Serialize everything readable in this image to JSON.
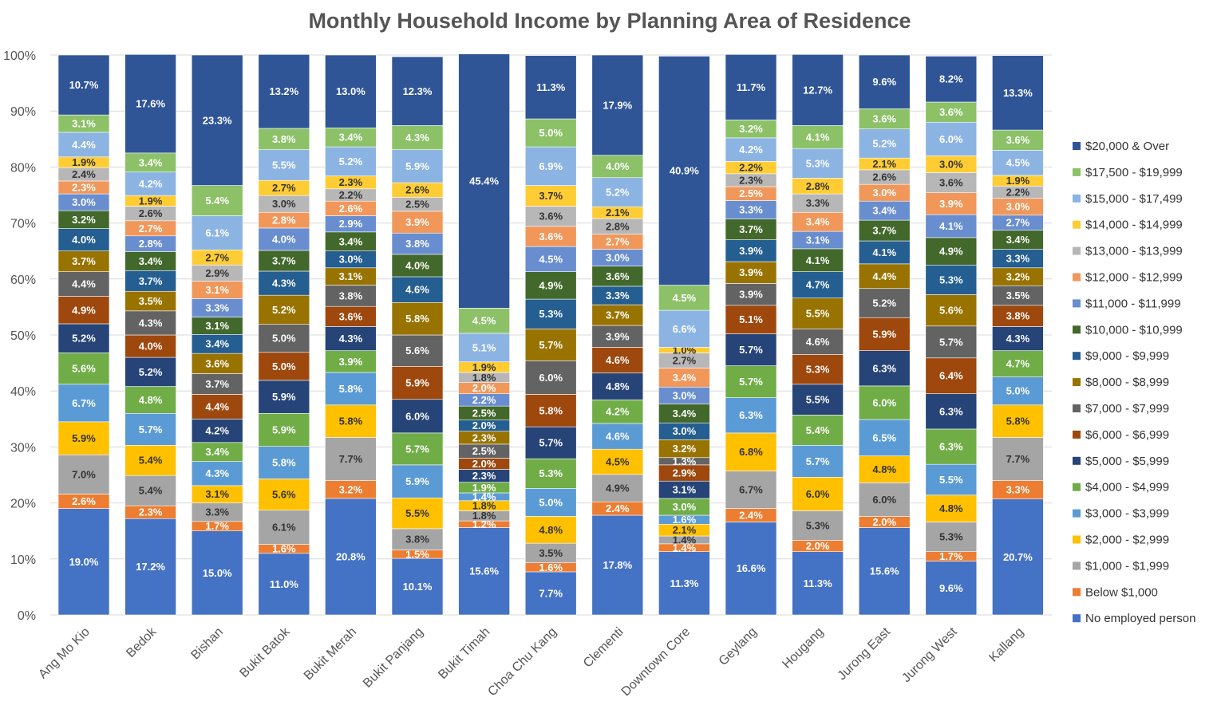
{
  "chart_data": {
    "type": "bar",
    "stacked": true,
    "percent": true,
    "title": "Monthly Household Income by Planning Area of Residence",
    "xlabel": "",
    "ylabel": "",
    "ylim": [
      0,
      100
    ],
    "yticks": [
      "0%",
      "10%",
      "20%",
      "30%",
      "40%",
      "50%",
      "60%",
      "70%",
      "80%",
      "90%",
      "100%"
    ],
    "grid": true,
    "legend_position": "right",
    "categories": [
      "Ang Mo Kio",
      "Bedok",
      "Bishan",
      "Bukit Batok",
      "Bukit Merah",
      "Bukit Panjang",
      "Bukit Timah",
      "Choa Chu Kang",
      "Clementi",
      "Downtown Core",
      "Geylang",
      "Hougang",
      "Jurong East",
      "Jurong West",
      "Kallang"
    ],
    "series": [
      {
        "name": "No employed person",
        "color": "#4472C4",
        "values": [
          19.0,
          17.2,
          15.0,
          11.0,
          20.8,
          10.1,
          15.6,
          7.7,
          17.8,
          11.3,
          16.6,
          11.3,
          15.6,
          9.6,
          20.7
        ]
      },
      {
        "name": "Below $1,000",
        "color": "#ED7D31",
        "values": [
          2.6,
          2.3,
          1.7,
          1.6,
          3.2,
          1.5,
          1.2,
          1.6,
          2.4,
          1.4,
          2.4,
          2.0,
          2.0,
          1.7,
          3.3
        ]
      },
      {
        "name": "$1,000 - $1,999",
        "color": "#A5A5A5",
        "values": [
          7.0,
          5.4,
          3.3,
          6.1,
          7.7,
          3.8,
          1.8,
          3.5,
          4.9,
          1.4,
          6.7,
          5.3,
          6.0,
          5.3,
          7.7
        ]
      },
      {
        "name": "$2,000 - $2,999",
        "color": "#FFC000",
        "values": [
          5.9,
          5.4,
          3.1,
          5.6,
          5.8,
          5.5,
          1.8,
          4.8,
          4.5,
          2.1,
          6.8,
          6.0,
          4.8,
          4.8,
          5.8
        ]
      },
      {
        "name": "$3,000 - $3,999",
        "color": "#5B9BD5",
        "values": [
          6.7,
          5.7,
          4.3,
          5.8,
          5.8,
          5.9,
          1.4,
          5.0,
          4.6,
          1.6,
          6.3,
          5.7,
          6.5,
          5.5,
          5.0
        ]
      },
      {
        "name": "$4,000 - $4,999",
        "color": "#70AD47",
        "values": [
          5.6,
          4.8,
          3.4,
          5.9,
          3.9,
          5.7,
          1.9,
          5.3,
          4.2,
          3.0,
          5.7,
          5.4,
          6.0,
          6.3,
          4.7
        ]
      },
      {
        "name": "$5,000 - $5,999",
        "color": "#264478",
        "values": [
          5.2,
          5.2,
          4.2,
          5.9,
          4.3,
          6.0,
          2.3,
          5.7,
          4.8,
          3.1,
          5.7,
          5.5,
          6.3,
          6.3,
          4.3
        ]
      },
      {
        "name": "$6,000 - $6,999",
        "color": "#9E480E",
        "values": [
          4.9,
          4.0,
          4.4,
          5.0,
          3.6,
          5.9,
          2.0,
          5.8,
          4.6,
          2.9,
          5.1,
          5.3,
          5.9,
          6.4,
          3.8
        ]
      },
      {
        "name": "$7,000 - $7,999",
        "color": "#636363",
        "values": [
          4.4,
          4.3,
          3.7,
          5.0,
          3.8,
          5.6,
          2.5,
          6.0,
          3.9,
          1.3,
          3.9,
          4.6,
          5.2,
          5.7,
          3.5
        ]
      },
      {
        "name": "$8,000 - $8,999",
        "color": "#997300",
        "values": [
          3.7,
          3.5,
          3.6,
          5.2,
          3.1,
          5.8,
          2.3,
          5.7,
          3.7,
          3.2,
          3.9,
          5.5,
          4.4,
          5.6,
          3.2
        ]
      },
      {
        "name": "$9,000 - $9,999",
        "color": "#255E91",
        "values": [
          4.0,
          3.7,
          3.4,
          4.3,
          3.0,
          4.6,
          2.0,
          5.3,
          3.3,
          3.0,
          3.9,
          4.7,
          4.1,
          5.3,
          3.3
        ]
      },
      {
        "name": "$10,000 - $10,999",
        "color": "#43682B",
        "values": [
          3.2,
          3.4,
          3.1,
          3.7,
          3.4,
          4.0,
          2.5,
          4.9,
          3.6,
          3.4,
          3.7,
          4.1,
          3.7,
          4.9,
          3.4
        ]
      },
      {
        "name": "$11,000 - $11,999",
        "color": "#698ED0",
        "values": [
          3.0,
          2.8,
          3.3,
          4.0,
          2.9,
          3.8,
          2.2,
          4.5,
          3.0,
          3.0,
          3.3,
          3.1,
          3.4,
          4.1,
          2.7
        ]
      },
      {
        "name": "$12,000 - $12,999",
        "color": "#F1975A",
        "values": [
          2.3,
          2.7,
          3.1,
          2.8,
          2.6,
          3.9,
          2.0,
          3.6,
          2.7,
          3.4,
          2.5,
          3.4,
          3.0,
          3.9,
          3.0
        ]
      },
      {
        "name": "$13,000 - $13,999",
        "color": "#B7B7B7",
        "values": [
          2.4,
          2.6,
          2.9,
          3.0,
          2.2,
          2.5,
          1.8,
          3.6,
          2.8,
          2.7,
          2.3,
          3.3,
          2.6,
          3.6,
          2.2
        ]
      },
      {
        "name": "$14,000 - $14,999",
        "color": "#FFCD33",
        "values": [
          1.9,
          1.9,
          2.7,
          2.7,
          2.3,
          2.6,
          1.9,
          3.7,
          2.1,
          1.0,
          2.2,
          2.8,
          2.1,
          3.0,
          1.9
        ]
      },
      {
        "name": "$15,000 - $17,499",
        "color": "#8CB4E3",
        "values": [
          4.4,
          4.2,
          6.1,
          5.5,
          5.2,
          5.9,
          5.1,
          6.9,
          5.2,
          6.6,
          4.2,
          5.3,
          5.2,
          6.0,
          4.5
        ]
      },
      {
        "name": "$17,500 - $19,999",
        "color": "#8CC168",
        "values": [
          3.1,
          3.4,
          5.4,
          3.8,
          3.4,
          4.3,
          4.5,
          5.0,
          4.0,
          4.5,
          3.2,
          4.1,
          3.6,
          3.6,
          3.6
        ]
      },
      {
        "name": "$20,000 & Over",
        "color": "#2F5597",
        "values": [
          10.7,
          17.6,
          23.3,
          13.2,
          13.0,
          12.3,
          45.4,
          11.3,
          17.9,
          40.9,
          11.7,
          12.7,
          9.6,
          8.2,
          13.3
        ]
      }
    ]
  }
}
